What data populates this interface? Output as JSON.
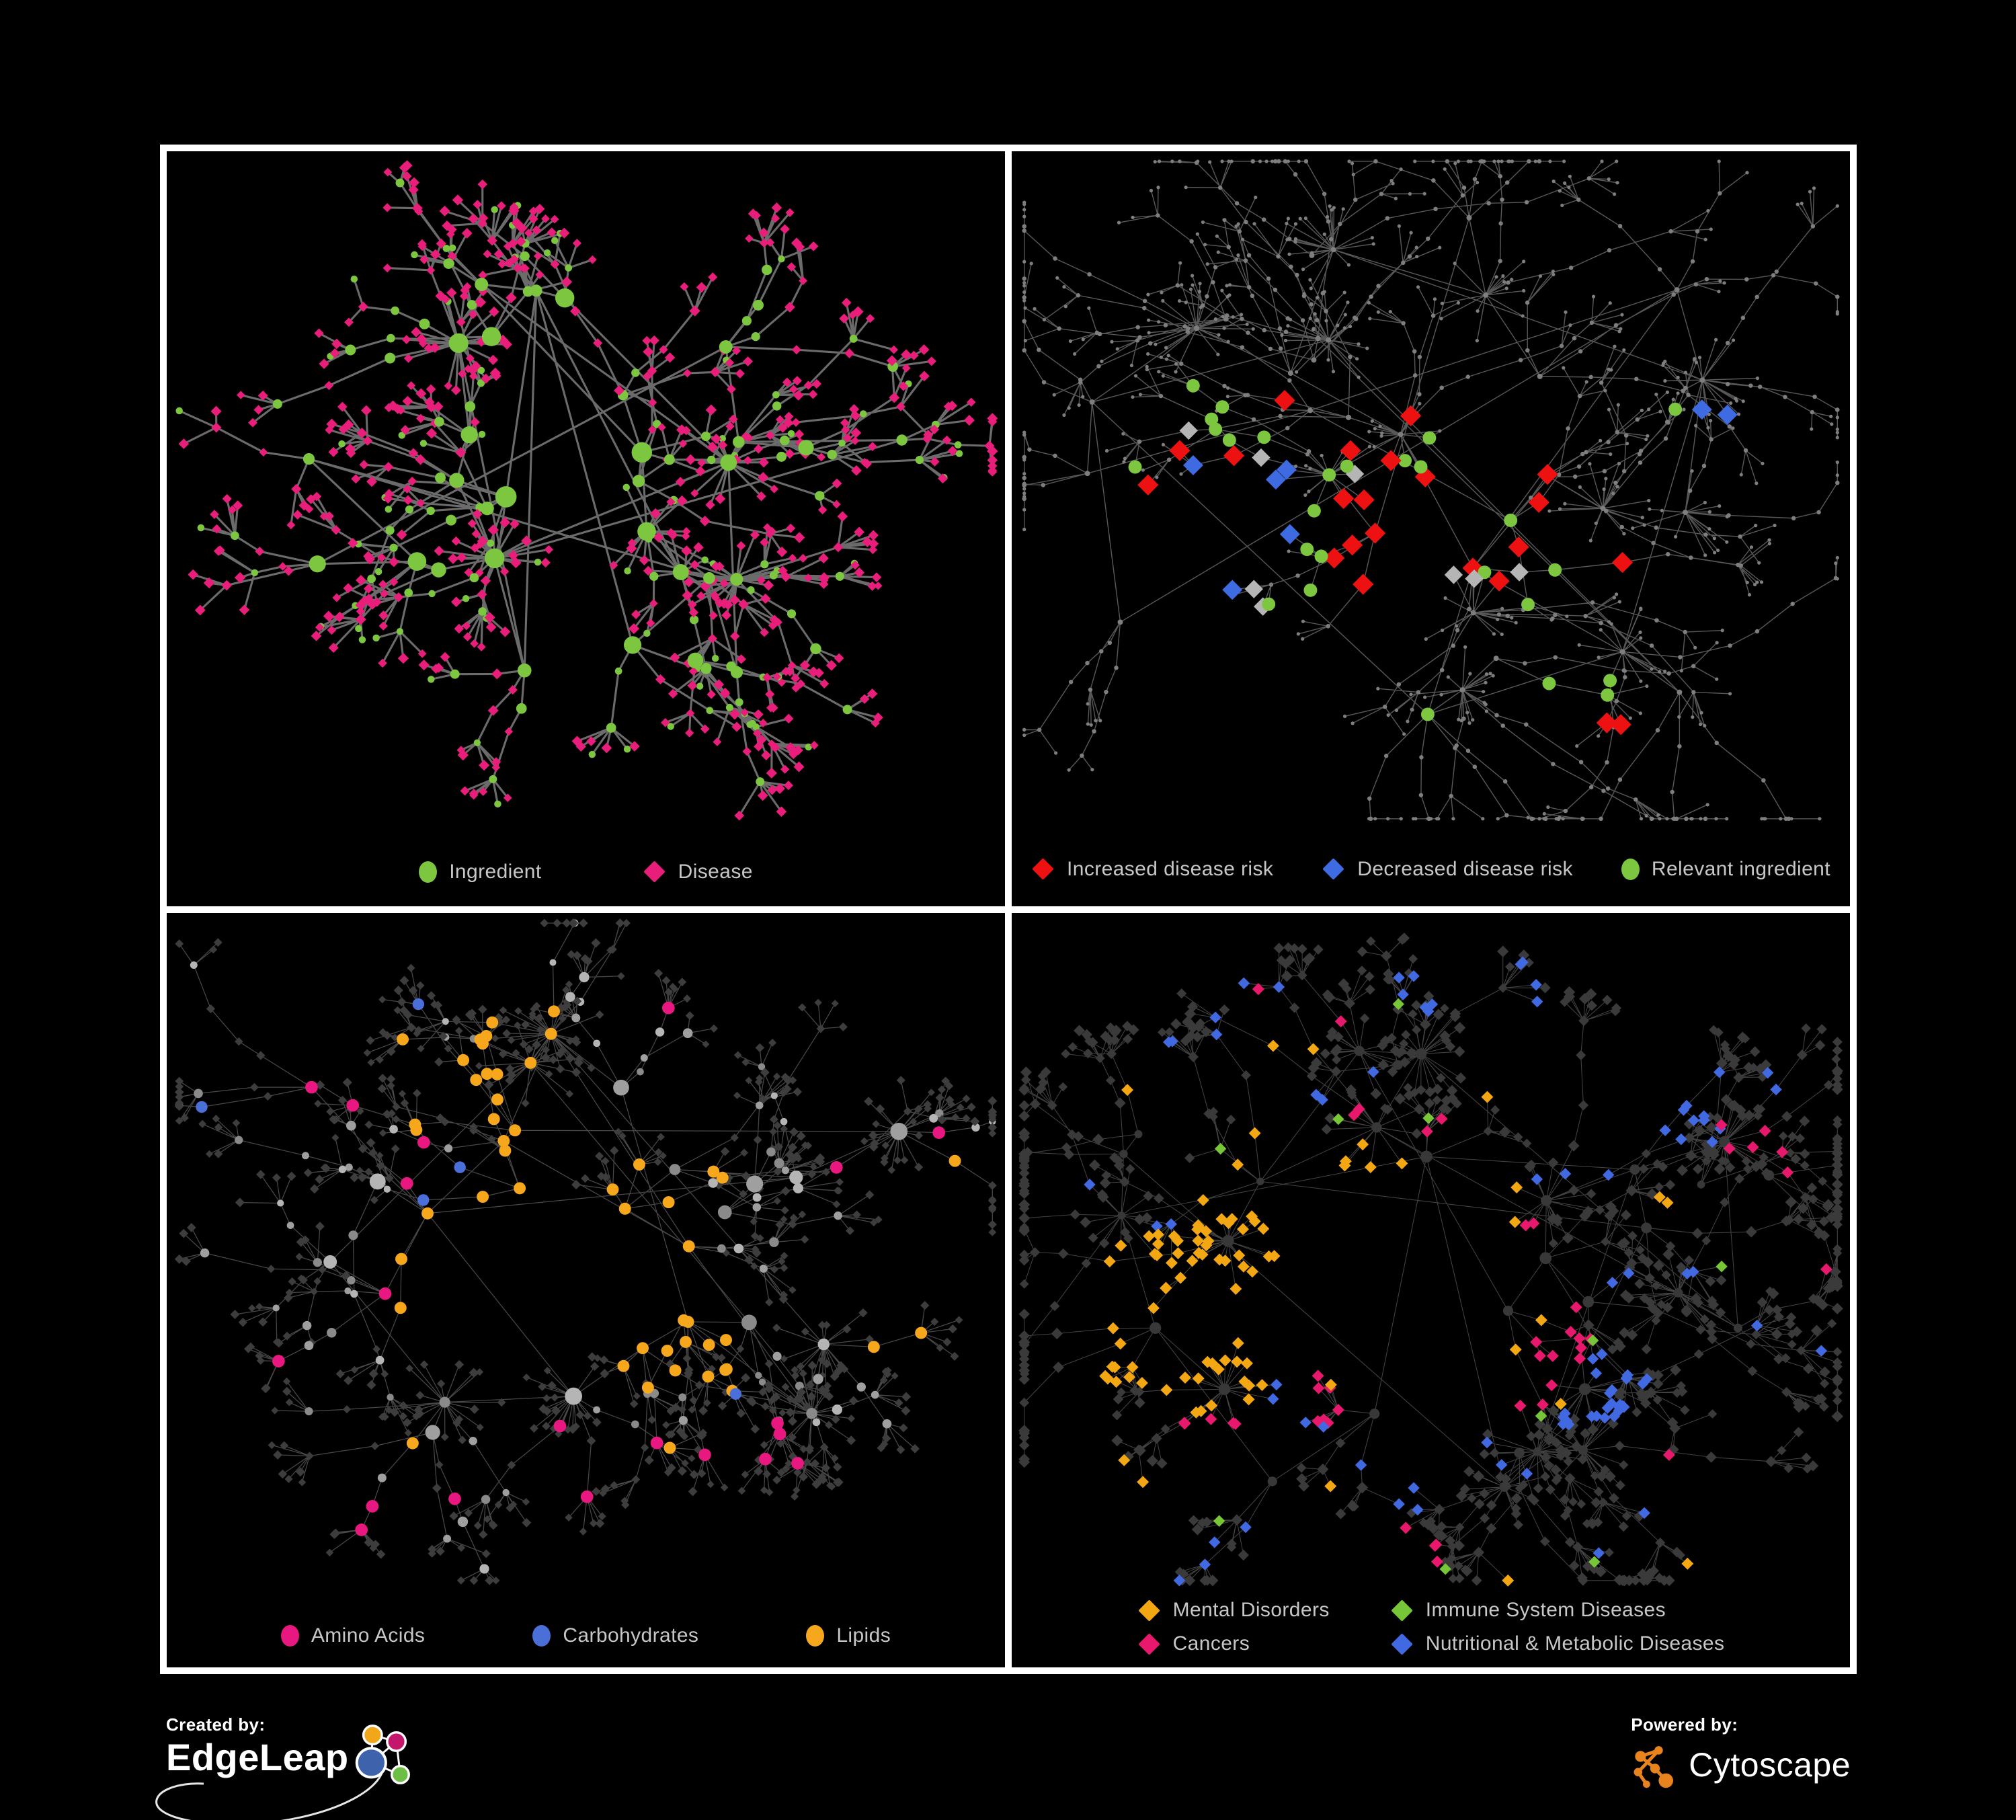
{
  "figure": {
    "background": "#000000",
    "frame_color": "#ffffff",
    "legend_text_color": "#c7c7c7"
  },
  "panels": [
    {
      "id": "ingredient-disease",
      "legend": [
        {
          "label": "Ingredient",
          "shape": "circle",
          "color": "#7dc63f"
        },
        {
          "label": "Disease",
          "shape": "diamond",
          "color": "#e91e7b"
        }
      ],
      "network": {
        "edge_color": "#747474"
      }
    },
    {
      "id": "disease-risk",
      "legend": [
        {
          "label": "Increased disease risk",
          "shape": "diamond",
          "color": "#ee1111"
        },
        {
          "label": "Decreased disease risk",
          "shape": "diamond",
          "color": "#3e6be1"
        },
        {
          "label": "Relevant ingredient",
          "shape": "circle",
          "color": "#7dc63f"
        }
      ],
      "network": {
        "edge_color": "#616161",
        "base_node_color": "#7e7e7e",
        "neutral_highlight_color": "#b5b5b5"
      }
    },
    {
      "id": "nutrient-classes",
      "legend": [
        {
          "label": "Amino Acids",
          "shape": "circle",
          "color": "#e91880"
        },
        {
          "label": "Carbohydrates",
          "shape": "circle",
          "color": "#4a6fd9"
        },
        {
          "label": "Lipids",
          "shape": "circle",
          "color": "#f6a71b"
        }
      ],
      "network": {
        "edge_color": "#909090",
        "base_circle_color": "#9f9f9f",
        "leaf_diamond_color": "#3d3d3d"
      }
    },
    {
      "id": "disease-classes",
      "legend": [
        {
          "label": "Mental Disorders",
          "shape": "diamond",
          "color": "#f3a712"
        },
        {
          "label": "Immune System Diseases",
          "shape": "diamond",
          "color": "#76c637"
        },
        {
          "label": "Cancers",
          "shape": "diamond",
          "color": "#e8186d"
        },
        {
          "label": "Nutritional & Metabolic Diseases",
          "shape": "diamond",
          "color": "#4169e1"
        }
      ],
      "network": {
        "edge_color": "#9e9e9e",
        "base_diamond_color": "#3a3a3a",
        "hub_circle_color": "#383838"
      }
    }
  ],
  "footer": {
    "created_by_label": "Created by:",
    "edgeleap_name": "EdgeLeap",
    "powered_by_label": "Powered by:",
    "cytoscape_name": "Cytoscape",
    "edgeleap_colors": {
      "orange": "#f2a71b",
      "magenta": "#c4166b",
      "blue": "#3f62ad",
      "green": "#6dbe45"
    },
    "cytoscape_color": "#e8831d"
  }
}
